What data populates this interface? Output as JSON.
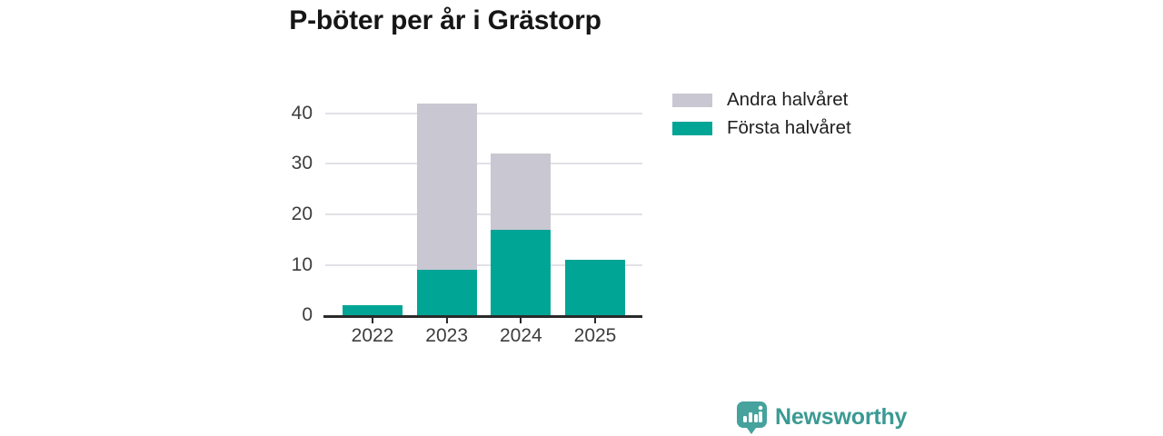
{
  "chart_data": {
    "type": "bar",
    "stacked": true,
    "title": "P-böter per år i Grästorp",
    "categories": [
      "2022",
      "2023",
      "2024",
      "2025"
    ],
    "series": [
      {
        "name": "Första halvåret",
        "color": "#00a596",
        "values": [
          2,
          9,
          17,
          11
        ]
      },
      {
        "name": "Andra halvåret",
        "color": "#c9c7d1",
        "values": [
          0,
          33,
          15,
          0
        ]
      }
    ],
    "totals": [
      2,
      42,
      32,
      11
    ],
    "xlabel": "",
    "ylabel": "",
    "yticks": [
      0,
      10,
      20,
      30,
      40
    ],
    "ylim": [
      0,
      44.5
    ],
    "grid": true,
    "gridline_color": "#e2e1e7",
    "axis_color": "#2a2a2a",
    "legend_position": "right"
  },
  "legend": {
    "items": [
      {
        "label": "Andra halvåret",
        "color": "#c9c7d1"
      },
      {
        "label": "Första halvåret",
        "color": "#00a596"
      }
    ]
  },
  "branding": {
    "logo_text": "Newsworthy",
    "logo_icon": "newsworthy-speech-bubble-bar-chart-icon",
    "brand_color": "#3a9a93"
  }
}
